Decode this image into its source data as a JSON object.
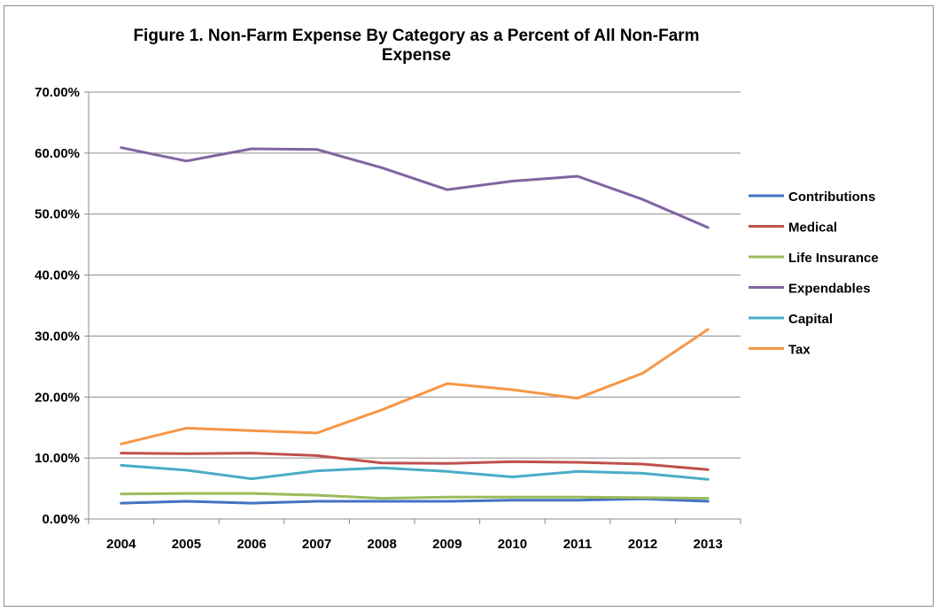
{
  "chart_data": {
    "type": "line",
    "title": "Figure 1. Non-Farm Expense By Category as a Percent of All Non-Farm Expense",
    "title_lines": [
      "Figure 1. Non-Farm Expense By Category as a Percent of All Non-Farm",
      "Expense"
    ],
    "xlabel": "",
    "ylabel": "",
    "categories": [
      "2004",
      "2005",
      "2006",
      "2007",
      "2008",
      "2009",
      "2010",
      "2011",
      "2012",
      "2013"
    ],
    "ylim": [
      0,
      70
    ],
    "yticks": [
      0,
      10,
      20,
      30,
      40,
      50,
      60,
      70
    ],
    "ytick_labels": [
      "0.00%",
      "10.00%",
      "20.00%",
      "30.00%",
      "40.00%",
      "50.00%",
      "60.00%",
      "70.00%"
    ],
    "grid": true,
    "legend_position": "right",
    "series": [
      {
        "name": "Contributions",
        "color": "#4472c4",
        "values": [
          2.6,
          2.9,
          2.6,
          2.9,
          2.9,
          2.9,
          3.1,
          3.1,
          3.3,
          2.9
        ]
      },
      {
        "name": "Medical",
        "color": "#c0504d",
        "values": [
          10.8,
          10.7,
          10.8,
          10.4,
          9.2,
          9.1,
          9.4,
          9.3,
          9.0,
          8.1
        ]
      },
      {
        "name": "Life Insurance",
        "color": "#9bbb59",
        "values": [
          4.1,
          4.2,
          4.2,
          3.9,
          3.4,
          3.6,
          3.6,
          3.6,
          3.5,
          3.4
        ]
      },
      {
        "name": "Expendables",
        "color": "#8064a2",
        "values": [
          60.9,
          58.7,
          60.7,
          60.6,
          57.6,
          54.0,
          55.4,
          56.2,
          52.4,
          47.8
        ]
      },
      {
        "name": "Capital",
        "color": "#4bacc6",
        "values": [
          8.8,
          8.0,
          6.6,
          7.9,
          8.4,
          7.8,
          6.9,
          7.8,
          7.5,
          6.5
        ]
      },
      {
        "name": "Tax",
        "color": "#f79646",
        "values": [
          12.3,
          14.9,
          14.5,
          14.1,
          17.9,
          22.2,
          21.2,
          19.8,
          23.9,
          31.1
        ]
      }
    ]
  }
}
